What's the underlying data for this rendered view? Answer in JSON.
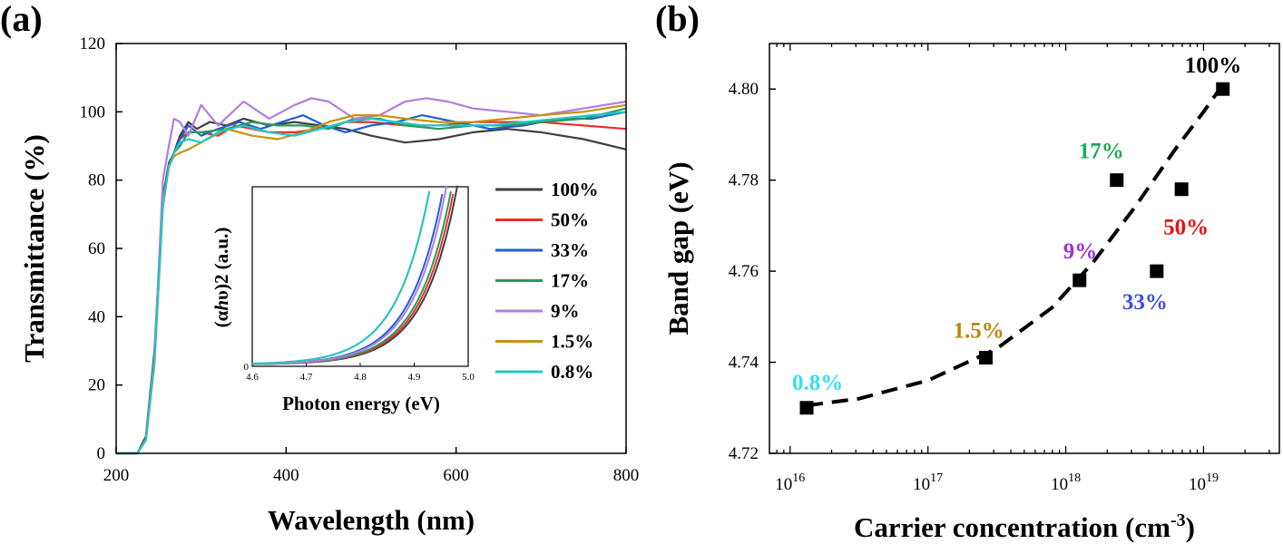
{
  "chart_data": [
    {
      "type": "line",
      "panel_label": "(a)",
      "xlabel": "Wavelength (nm)",
      "ylabel": "Transmittance (%)",
      "xlim": [
        200,
        800
      ],
      "ylim": [
        0,
        120
      ],
      "xticks": [
        "200",
        "400",
        "600",
        "800"
      ],
      "yticks": [
        "0",
        "20",
        "40",
        "60",
        "80",
        "100",
        "120"
      ],
      "legend_position": "right",
      "series": [
        {
          "name": "100%",
          "color": "#404040",
          "x": [
            200,
            225,
            235,
            245,
            255,
            262,
            268,
            275,
            285,
            295,
            310,
            330,
            350,
            380,
            410,
            440,
            470,
            500,
            540,
            580,
            620,
            660,
            700,
            750,
            800
          ],
          "y": [
            0,
            0,
            5,
            30,
            75,
            85,
            88,
            93,
            97,
            95,
            97,
            96,
            98,
            96,
            97,
            96,
            95,
            93,
            91,
            92,
            94,
            95,
            94,
            92,
            89
          ]
        },
        {
          "name": "50%",
          "color": "#e8302d",
          "x": [
            200,
            225,
            235,
            245,
            255,
            262,
            268,
            275,
            285,
            300,
            320,
            340,
            360,
            380,
            410,
            440,
            470,
            500,
            540,
            580,
            620,
            660,
            700,
            750,
            800
          ],
          "y": [
            0,
            0,
            4,
            28,
            74,
            84,
            88,
            92,
            94,
            94,
            93,
            96,
            95,
            94,
            94,
            95,
            97,
            97,
            96,
            96,
            97,
            97,
            97,
            96,
            95
          ]
        },
        {
          "name": "33%",
          "color": "#1f5fd6",
          "x": [
            200,
            225,
            235,
            245,
            255,
            262,
            268,
            275,
            285,
            300,
            320,
            345,
            370,
            395,
            420,
            445,
            470,
            500,
            530,
            560,
            600,
            640,
            680,
            720,
            760,
            800
          ],
          "y": [
            0,
            0,
            4,
            27,
            74,
            84,
            88,
            92,
            96,
            93,
            95,
            97,
            95,
            97,
            99,
            96,
            94,
            96,
            97,
            99,
            97,
            95,
            96,
            98,
            98,
            100
          ]
        },
        {
          "name": "17%",
          "color": "#2c9a57",
          "x": [
            200,
            225,
            235,
            245,
            255,
            262,
            268,
            275,
            285,
            300,
            330,
            360,
            390,
            420,
            450,
            480,
            510,
            540,
            580,
            620,
            660,
            700,
            750,
            800
          ],
          "y": [
            0,
            0,
            4,
            27,
            73,
            84,
            88,
            90,
            94,
            94,
            95,
            97,
            96,
            96,
            95,
            98,
            98,
            96,
            95,
            96,
            96,
            97,
            98,
            101
          ]
        },
        {
          "name": "9%",
          "color": "#b07ee0",
          "x": [
            200,
            225,
            235,
            245,
            255,
            262,
            268,
            275,
            285,
            300,
            320,
            350,
            380,
            410,
            430,
            450,
            480,
            510,
            540,
            565,
            590,
            620,
            660,
            700,
            750,
            800
          ],
          "y": [
            0,
            0,
            4,
            28,
            80,
            90,
            98,
            97,
            93,
            102,
            96,
            103,
            98,
            102,
            104,
            103,
            98,
            99,
            103,
            104,
            103,
            101,
            100,
            99,
            101,
            103
          ]
        },
        {
          "name": "1.5%",
          "color": "#c7930f",
          "x": [
            200,
            225,
            235,
            245,
            255,
            262,
            268,
            275,
            285,
            300,
            330,
            360,
            390,
            420,
            450,
            480,
            510,
            540,
            580,
            620,
            660,
            700,
            750,
            800
          ],
          "y": [
            0,
            0,
            4,
            26,
            72,
            84,
            87,
            88,
            89,
            91,
            95,
            93,
            92,
            94,
            97,
            99,
            99,
            98,
            97,
            97,
            98,
            99,
            100,
            102
          ]
        },
        {
          "name": "0.8%",
          "color": "#1fc7c7",
          "x": [
            200,
            225,
            235,
            245,
            255,
            262,
            268,
            275,
            285,
            300,
            320,
            350,
            380,
            410,
            440,
            470,
            500,
            530,
            560,
            600,
            640,
            680,
            720,
            760,
            800
          ],
          "y": [
            0,
            0,
            4,
            27,
            73,
            84,
            88,
            91,
            92,
            91,
            94,
            96,
            94,
            93,
            95,
            97,
            98,
            97,
            96,
            96,
            96,
            97,
            98,
            99,
            100
          ]
        }
      ]
    },
    {
      "type": "line",
      "panel_label": "inset",
      "xlabel": "Photon energy (eV)",
      "ylabel": "(αhυ)2 (a.u.)",
      "ylabel_parts": [
        "(α",
        "h",
        "υ)",
        "2",
        " (a.u.)"
      ],
      "xlim": [
        4.6,
        5.0
      ],
      "ylim": [
        0,
        1
      ],
      "xticks": [
        "4.6",
        "4.7",
        "4.8",
        "4.9",
        "5.0"
      ],
      "yticks": [
        "0"
      ],
      "onsets": [
        {
          "name": "100%",
          "color": "#404040",
          "e0": 4.985
        },
        {
          "name": "50%",
          "color": "#e8302d",
          "e0": 4.98
        },
        {
          "name": "33%",
          "color": "#1f5fd6",
          "e0": 4.96
        },
        {
          "name": "17%",
          "color": "#2c9a57",
          "e0": 4.975
        },
        {
          "name": "9%",
          "color": "#b07ee0",
          "e0": 4.965
        },
        {
          "name": "1.5%",
          "color": "#c7930f",
          "e0": 4.935
        },
        {
          "name": "0.8%",
          "color": "#1fc7c7",
          "e0": 4.935
        }
      ]
    },
    {
      "type": "scatter",
      "panel_label": "(b)",
      "xlabel": "Carrier concentration (cm",
      "xlabel_sup": "-3",
      "xlabel_close": ")",
      "ylabel": "Band gap (eV)",
      "xscale": "log",
      "xlim_log10": [
        15.85,
        19.55
      ],
      "ylim": [
        4.72,
        4.81
      ],
      "xticks": [
        {
          "base": "10",
          "exp": "16",
          "log10": 16
        },
        {
          "base": "10",
          "exp": "17",
          "log10": 17
        },
        {
          "base": "10",
          "exp": "18",
          "log10": 18
        },
        {
          "base": "10",
          "exp": "19",
          "log10": 19
        }
      ],
      "yticks": [
        "4.72",
        "4.74",
        "4.76",
        "4.78",
        "4.80"
      ],
      "points": [
        {
          "label": "0.8%",
          "color": "#35e0f0",
          "log10x": 16.12,
          "y": 4.73
        },
        {
          "label": "1.5%",
          "color": "#b8860b",
          "log10x": 17.42,
          "y": 4.741
        },
        {
          "label": "9%",
          "color": "#9b30e0",
          "log10x": 18.1,
          "y": 4.758
        },
        {
          "label": "17%",
          "color": "#1faa55",
          "log10x": 18.37,
          "y": 4.78
        },
        {
          "label": "33%",
          "color": "#3a50e0",
          "log10x": 18.66,
          "y": 4.76
        },
        {
          "label": "50%",
          "color": "#e81010",
          "log10x": 18.84,
          "y": 4.778
        },
        {
          "label": "100%",
          "color": "#000000",
          "log10x": 19.14,
          "y": 4.8
        }
      ],
      "fit": {
        "style": "dashed",
        "color": "#000000",
        "log10x": [
          16.12,
          16.5,
          17.0,
          17.5,
          17.9,
          18.2,
          18.5,
          18.8,
          19.0,
          19.14
        ],
        "y": [
          4.7305,
          4.732,
          4.736,
          4.743,
          4.752,
          4.762,
          4.774,
          4.787,
          4.795,
          4.801
        ]
      }
    }
  ]
}
